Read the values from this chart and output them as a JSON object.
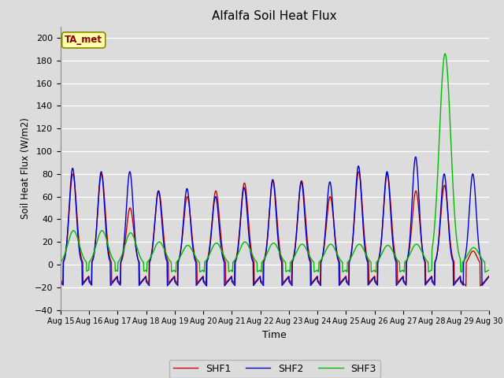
{
  "title": "Alfalfa Soil Heat Flux",
  "ylabel": "Soil Heat Flux (W/m2)",
  "xlabel": "Time",
  "ylim": [
    -40,
    210
  ],
  "yticks": [
    -40,
    -20,
    0,
    20,
    40,
    60,
    80,
    100,
    120,
    140,
    160,
    180,
    200
  ],
  "background_color": "#dcdcdc",
  "plot_bg_color": "#dcdcdc",
  "shf1_color": "#cc0000",
  "shf2_color": "#0000cc",
  "shf3_color": "#00bb00",
  "annotation_text": "TA_met",
  "annotation_text_color": "#8b0000",
  "annotation_bg_color": "#ffffaa",
  "annotation_border_color": "#888800",
  "legend_labels": [
    "SHF1",
    "SHF2",
    "SHF3"
  ],
  "n_days": 15,
  "start_day": 15,
  "points_per_day": 96,
  "shf1_peaks": [
    80,
    80,
    50,
    65,
    60,
    65,
    72,
    74,
    74,
    60,
    82,
    80,
    65,
    70,
    12
  ],
  "shf2_peaks": [
    85,
    82,
    82,
    65,
    67,
    60,
    68,
    75,
    73,
    73,
    87,
    82,
    95,
    80,
    80
  ],
  "shf3_peaks": [
    30,
    30,
    28,
    20,
    17,
    19,
    20,
    19,
    18,
    18,
    18,
    17,
    18,
    186,
    15
  ],
  "shf1_night": -22,
  "shf2_night": -24,
  "shf3_night": -10,
  "linewidth": 1.0
}
